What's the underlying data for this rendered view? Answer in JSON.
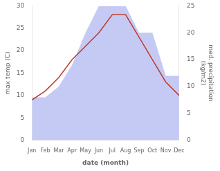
{
  "chart_data": {
    "type": "line",
    "categories": [
      "Jan",
      "Feb",
      "Mar",
      "Apr",
      "May",
      "Jun",
      "Jul",
      "Aug",
      "Sep",
      "Oct",
      "Nov",
      "Dec"
    ],
    "series": [
      {
        "type": "area",
        "axis": "y2",
        "color": "#c5caf5",
        "values": [
          8,
          8,
          10,
          14,
          20,
          25,
          25,
          25,
          20,
          20,
          12,
          12
        ]
      },
      {
        "type": "line",
        "color": "#c0392b",
        "values": [
          9,
          11,
          14,
          18,
          21,
          24,
          28,
          28,
          23,
          18,
          13,
          10
        ]
      }
    ],
    "xlabel": "date (month)",
    "ylabel": "max temp (C)",
    "y2label": "med. precipitation\n(kg/m2)",
    "ylim": [
      0,
      30
    ],
    "yticks": [
      0,
      5,
      10,
      15,
      20,
      25,
      30
    ],
    "y2lim": [
      0,
      25
    ],
    "y2ticks": [
      0,
      5,
      10,
      15,
      20,
      25
    ],
    "grid": false
  }
}
